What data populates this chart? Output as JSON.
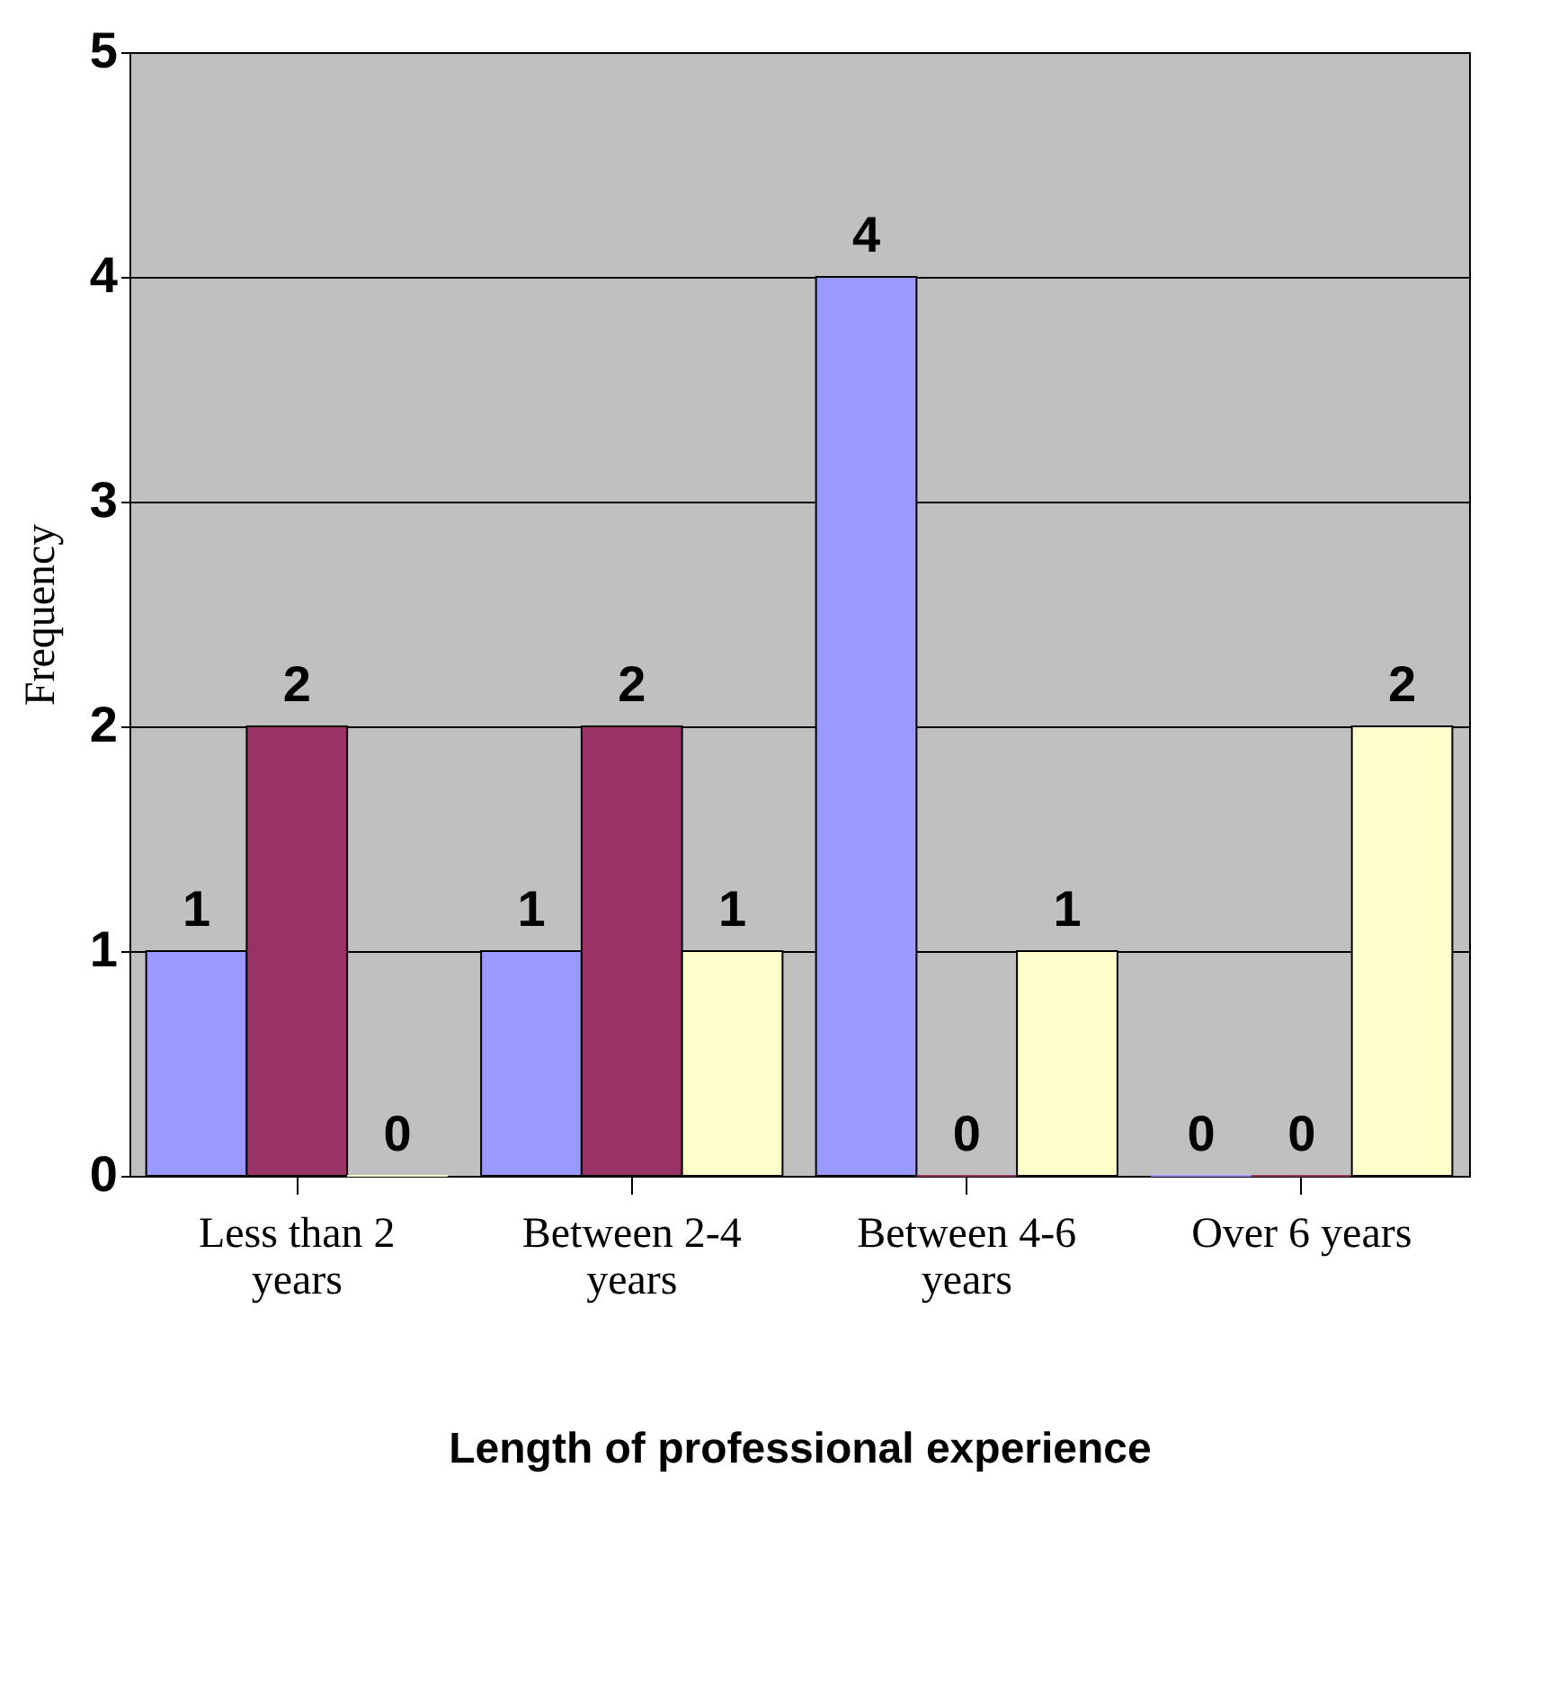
{
  "chart_data": {
    "type": "bar",
    "xlabel": "Length of professional experience",
    "ylabel": "Frequency",
    "categories": [
      "Less than 2 years",
      "Between 2-4 years",
      "Between 4-6 years",
      "Over 6 years"
    ],
    "series": [
      {
        "color": "#9999ff",
        "values": [
          1,
          1,
          4,
          0
        ]
      },
      {
        "color": "#993366",
        "values": [
          2,
          2,
          0,
          0
        ]
      },
      {
        "color": "#ffffcc",
        "values": [
          0,
          1,
          1,
          2
        ]
      }
    ],
    "ylim": [
      0,
      5
    ],
    "yticks": [
      0,
      1,
      2,
      3,
      4,
      5
    ],
    "grid": "y",
    "data_labels": true
  }
}
